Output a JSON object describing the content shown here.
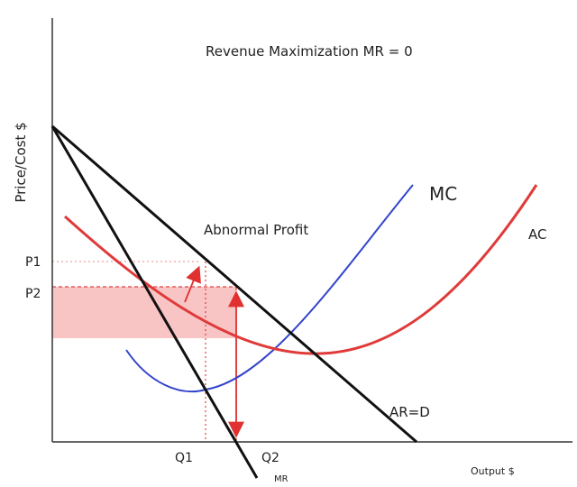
{
  "title": "Revenue Maximization MR  = 0",
  "y_axis_label": "Price/Cost $",
  "x_axis_label": "Output $",
  "curves": {
    "mc": "MC",
    "ac": "AC",
    "ar_d": "AR=D",
    "mr": "MR"
  },
  "annotation": "Abnormal Profit",
  "prices": [
    "P1",
    "P2"
  ],
  "quantities": [
    "Q1",
    "Q2"
  ]
}
